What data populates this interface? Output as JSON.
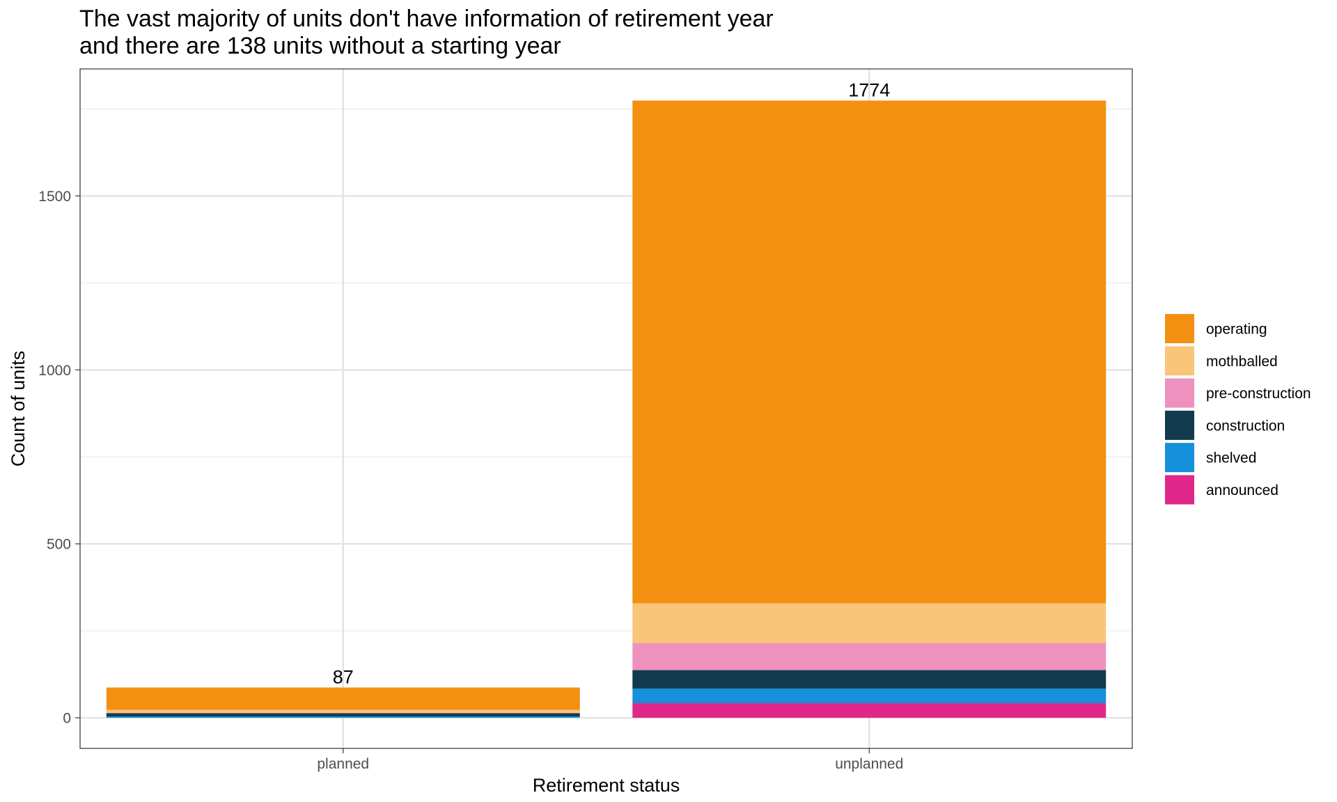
{
  "chart_data": {
    "type": "bar",
    "stacked": true,
    "title_lines": [
      "The vast majority of units don't have information of retirement year",
      "and there are 138 units without a starting year"
    ],
    "xlabel": "Retirement status",
    "ylabel": "Count of units",
    "categories": [
      "planned",
      "unplanned"
    ],
    "totals": [
      87,
      1774
    ],
    "ylim": [
      -88,
      1865
    ],
    "yticks": [
      0,
      500,
      1000,
      1500
    ],
    "grid": true,
    "legend_position": "right",
    "series": [
      {
        "name": "announced",
        "color": "#E0288A",
        "values": [
          0,
          42
        ]
      },
      {
        "name": "shelved",
        "color": "#1590DB",
        "values": [
          4,
          42
        ]
      },
      {
        "name": "construction",
        "color": "#123B50",
        "values": [
          9,
          53
        ]
      },
      {
        "name": "pre-construction",
        "color": "#EF91BF",
        "values": [
          1,
          78
        ]
      },
      {
        "name": "mothballed",
        "color": "#F8C579",
        "values": [
          9,
          114
        ]
      },
      {
        "name": "operating",
        "color": "#F39011",
        "values": [
          64,
          1445
        ]
      }
    ],
    "legend_order": [
      "operating",
      "mothballed",
      "pre-construction",
      "construction",
      "shelved",
      "announced"
    ]
  }
}
